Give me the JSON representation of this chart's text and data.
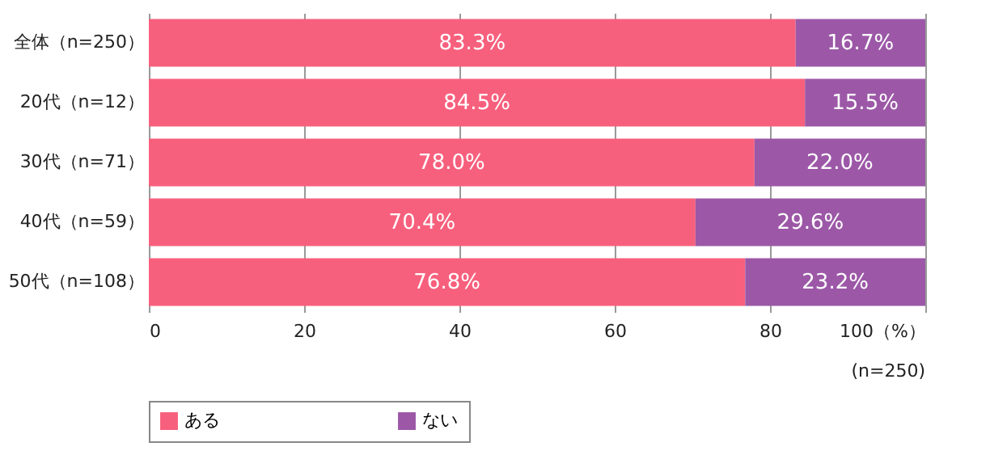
{
  "chart_data": {
    "type": "bar",
    "orientation": "horizontal",
    "stacked": true,
    "categories": [
      "全体（n=250）",
      "20代（n=12）",
      "30代（n=71）",
      "40代（n=59）",
      "50代（n=108）"
    ],
    "series": [
      {
        "name": "ある",
        "color": "#f7607d",
        "values": [
          83.3,
          84.5,
          78.0,
          70.4,
          76.8
        ],
        "value_labels": [
          "83.3%",
          "84.5%",
          "78.0%",
          "70.4%",
          "76.8%"
        ]
      },
      {
        "name": "ない",
        "color": "#9c58a7",
        "values": [
          16.7,
          15.5,
          22.0,
          29.6,
          23.2
        ],
        "value_labels": [
          "16.7%",
          "15.5%",
          "22.0%",
          "29.6%",
          "23.2%"
        ]
      }
    ],
    "xlim": [
      0,
      100
    ],
    "xticks": [
      0,
      20,
      40,
      60,
      80,
      {
        "value": 100,
        "label": "100（%）"
      }
    ],
    "grid": "x",
    "legend": "bottom",
    "annotations": [
      "(n=250)"
    ]
  }
}
